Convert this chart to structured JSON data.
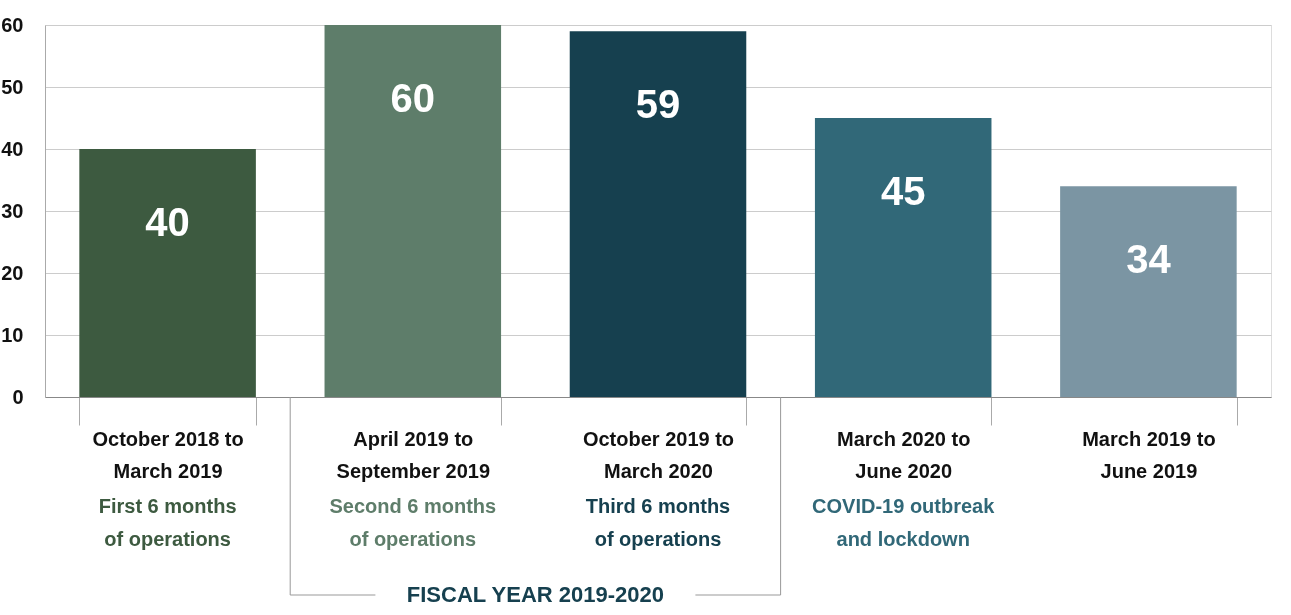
{
  "chart_data": {
    "type": "bar",
    "categories": [
      "October 2018 to\nMarch 2019",
      "April 2019 to\nSeptember 2019",
      "October 2019 to\nMarch 2020",
      "March 2020 to\nJune 2020",
      "March 2019 to\nJune 2019"
    ],
    "values": [
      40,
      60,
      59,
      45,
      34
    ],
    "colors": [
      "#3d5a40",
      "#5e7d6a",
      "#16404f",
      "#316878",
      "#7b95a3"
    ],
    "ylim": [
      0,
      60
    ],
    "yticks": [
      0,
      10,
      20,
      30,
      40,
      50,
      60
    ],
    "grid": "y",
    "data_labels": true,
    "annotations": [
      "First 6 months\nof operations",
      "Second 6 months\nof operations",
      "Third 6 months\nof operations",
      "COVID-19 outbreak\nand lockdown",
      "FISCAL YEAR 2019-2020"
    ]
  }
}
